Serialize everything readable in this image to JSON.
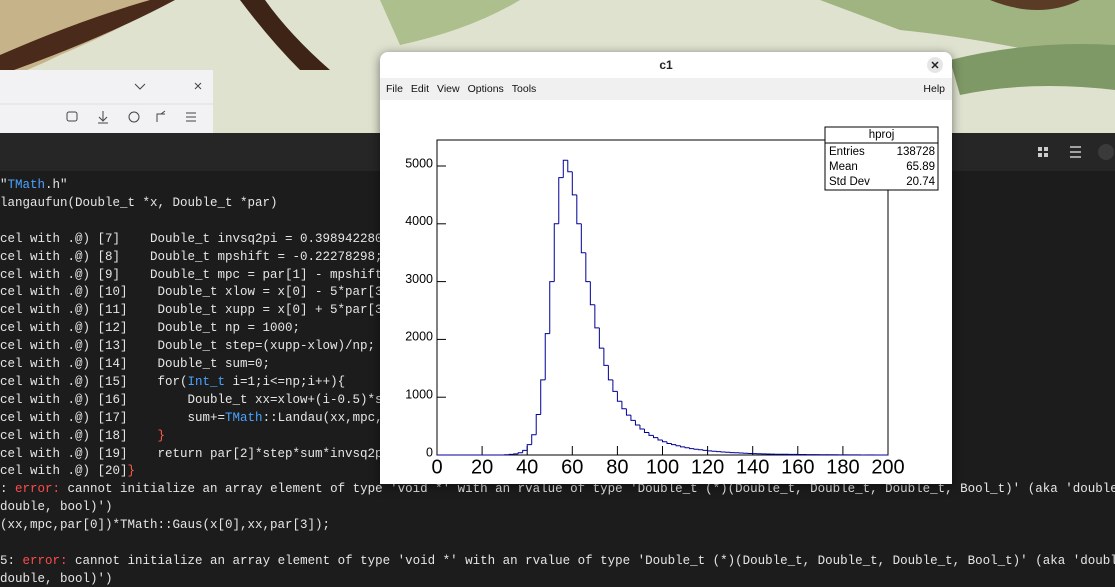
{
  "terminal": {
    "lines": [
      [
        "\"",
        {
          "text": "TMath",
          "color": "#4aa3ff"
        },
        ".h\""
      ],
      [
        "langaufun(Double_t *x, Double_t *par)"
      ],
      [],
      [
        "cel with .@) [7]    Double_t invsq2pi = 0.398942280"
      ],
      [
        "cel with .@) [8]    Double_t mpshift = -0.22278298;"
      ],
      [
        "cel with .@) [9]    Double_t mpc = par[1] - mpshift"
      ],
      [
        "cel with .@) [10]    Double_t xlow = x[0] - 5*par[3"
      ],
      [
        "cel with .@) [11]    Double_t xupp = x[0] + 5*par[3"
      ],
      [
        "cel with .@) [12]    Double_t np = 1000;"
      ],
      [
        "cel with .@) [13]    Double_t step=(xupp-xlow)/np;"
      ],
      [
        "cel with .@) [14]    Double_t sum=0;"
      ],
      [
        "cel with .@) [15]    for(",
        {
          "text": "Int_t",
          "color": "#4aa3ff"
        },
        " i=1;i<=np;i++){"
      ],
      [
        "cel with .@) [16]        Double_t xx=xlow+(i-0.5)*s"
      ],
      [
        "cel with .@) [17]        sum+=",
        {
          "text": "TMath",
          "color": "#4aa3ff"
        },
        "::Landau(xx,mpc,"
      ],
      [
        "cel with .@) [18]    ",
        {
          "text": "}",
          "color": "#ff5b4a"
        }
      ],
      [
        "cel with .@) [19]    return par[2]*step*sum*invsq2p"
      ],
      [
        "cel with .@) [20]",
        {
          "text": "}",
          "color": "#ff5b4a"
        }
      ],
      [
        ": ",
        {
          "text": "error:",
          "color": "#ff4b4b"
        },
        " cannot initialize an array element of type 'void *' with an rvalue of type 'Double_t (*)(Double_t, Double_t, Double_t, Bool_t)' (aka 'double ("
      ],
      [
        "double, bool)')"
      ],
      [
        "(xx,mpc,par[0])*TMath::Gaus(x[0],xx,par[3]);"
      ],
      [],
      [
        "5: ",
        {
          "text": "error:",
          "color": "#ff4b4b"
        },
        " cannot initialize an array element of type 'void *' with an rvalue of type 'Double_t (*)(Double_t, Double_t, Double_t, Bool_t)' (aka 'double"
      ],
      [
        "double, bool)')"
      ]
    ]
  },
  "root_window": {
    "title": "c1",
    "menu": [
      "File",
      "Edit",
      "View",
      "Options",
      "Tools"
    ],
    "help": "Help",
    "stats": {
      "title": "hproj",
      "rows": [
        {
          "label": "Entries",
          "value": 138728
        },
        {
          "label": "Mean",
          "value": 65.89
        },
        {
          "label": "Std Dev",
          "value": 20.74
        }
      ]
    }
  },
  "chart_data": {
    "type": "histogram",
    "color": "#000099",
    "bins": [
      0,
      2,
      4,
      6,
      8,
      10,
      12,
      14,
      16,
      18,
      20,
      22,
      24,
      26,
      28,
      30,
      32,
      34,
      36,
      38,
      40,
      42,
      44,
      46,
      48,
      50,
      52,
      54,
      56,
      58,
      60,
      62,
      64,
      66,
      68,
      70,
      72,
      74,
      76,
      78,
      80,
      82,
      84,
      86,
      88,
      90,
      92,
      94,
      96,
      98,
      100,
      102,
      104,
      106,
      108,
      110,
      112,
      114,
      116,
      118,
      120,
      122,
      124,
      126,
      128,
      130,
      132,
      134,
      136,
      138,
      140,
      142,
      144,
      146,
      148,
      150,
      152,
      154,
      156,
      158,
      160,
      162,
      164,
      166,
      168,
      170,
      172,
      174,
      176,
      178,
      180,
      182,
      184,
      186,
      188,
      190,
      192,
      194,
      196,
      198,
      200
    ],
    "values": [
      0,
      0,
      0,
      0,
      0,
      0,
      0,
      0,
      0,
      0,
      0,
      0,
      0,
      0,
      0,
      5,
      10,
      20,
      40,
      80,
      180,
      350,
      700,
      1300,
      2100,
      3000,
      4000,
      4800,
      5100,
      4900,
      4500,
      4000,
      3500,
      3000,
      2600,
      2200,
      1850,
      1550,
      1300,
      1100,
      930,
      800,
      690,
      600,
      520,
      450,
      390,
      340,
      300,
      260,
      230,
      200,
      180,
      160,
      140,
      125,
      110,
      100,
      90,
      80,
      72,
      65,
      58,
      52,
      47,
      42,
      38,
      34,
      30,
      27,
      24,
      22,
      20,
      18,
      16,
      14,
      13,
      12,
      11,
      10,
      9,
      8,
      7,
      6,
      6,
      5,
      5,
      4,
      4,
      3,
      3,
      2,
      2,
      2,
      1,
      1,
      1,
      0,
      0,
      0
    ],
    "xlim": [
      0,
      200
    ],
    "xticks": [
      0,
      20,
      40,
      60,
      80,
      100,
      120,
      140,
      160,
      180,
      200
    ],
    "ylim": [
      0,
      5450
    ],
    "yticks": [
      0,
      1000,
      2000,
      3000,
      4000,
      5000
    ]
  }
}
